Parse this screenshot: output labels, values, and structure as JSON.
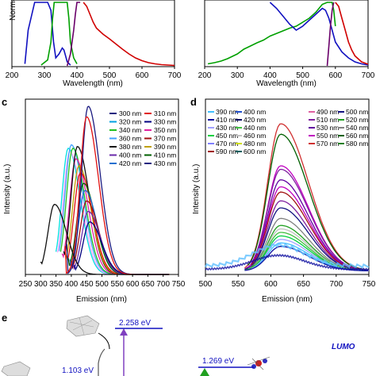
{
  "panels": {
    "a": {
      "xlabel": "Wavelength (nm)",
      "ylabel_partial": "Norma",
      "xticks": [
        "200",
        "300",
        "400",
        "500",
        "600",
        "700"
      ],
      "xlim": [
        200,
        700
      ],
      "series": [
        {
          "color": "#1010c0",
          "x": [
            240,
            250,
            270,
            290,
            300,
            310,
            320,
            328,
            335,
            345,
            355,
            360,
            365,
            370,
            380
          ],
          "y": [
            0.05,
            0.9,
            1.6,
            1.6,
            1.6,
            1.6,
            1.4,
            0.6,
            0.2,
            0.3,
            0.45,
            0.4,
            0.25,
            0.1,
            0.02
          ]
        },
        {
          "color": "#00a000",
          "x": [
            290,
            310,
            320,
            325,
            330,
            335,
            340,
            350,
            360,
            365,
            370,
            375,
            380,
            390,
            400
          ],
          "y": [
            0.02,
            0.15,
            0.6,
            1.2,
            1.6,
            1.6,
            1.6,
            1.6,
            1.6,
            1.6,
            1.6,
            1.2,
            0.6,
            0.2,
            0.05
          ]
        },
        {
          "color": "#6a006a",
          "x": [
            370,
            380,
            390,
            395,
            400,
            405,
            410
          ],
          "y": [
            0.0,
            0.3,
            0.9,
            1.3,
            1.6,
            1.6,
            1.6
          ]
        },
        {
          "color": "#d00000",
          "x": [
            420,
            430,
            440,
            450,
            460,
            480,
            500,
            520,
            540,
            560,
            580,
            600,
            620,
            640,
            660,
            680,
            700
          ],
          "y": [
            1.6,
            1.5,
            1.3,
            1.1,
            0.95,
            0.8,
            0.68,
            0.55,
            0.42,
            0.3,
            0.2,
            0.13,
            0.08,
            0.05,
            0.03,
            0.02,
            0.01
          ]
        }
      ]
    },
    "b": {
      "xlabel": "Wavelength (nm)",
      "xticks": [
        "200",
        "300",
        "400",
        "500",
        "600",
        "700"
      ],
      "xlim": [
        200,
        700
      ],
      "series": [
        {
          "color": "#00a000",
          "x": [
            210,
            230,
            250,
            270,
            300,
            320,
            340,
            360,
            380,
            400,
            430,
            460,
            480,
            500,
            520,
            540,
            560,
            575,
            580,
            585,
            590,
            595,
            600
          ],
          "y": [
            0.05,
            0.08,
            0.12,
            0.18,
            0.3,
            0.42,
            0.5,
            0.58,
            0.65,
            0.75,
            0.85,
            0.95,
            1.0,
            1.1,
            1.2,
            1.35,
            1.55,
            1.6,
            1.6,
            1.6,
            1.6,
            1.4,
            1.0
          ]
        },
        {
          "color": "#1010c0",
          "x": [
            400,
            420,
            440,
            460,
            480,
            500,
            520,
            540,
            560,
            570,
            580,
            590,
            600,
            620,
            640,
            660,
            680,
            700
          ],
          "y": [
            1.6,
            1.45,
            1.25,
            1.05,
            0.9,
            1.0,
            1.15,
            1.3,
            1.45,
            1.4,
            1.2,
            0.9,
            0.6,
            0.35,
            0.2,
            0.1,
            0.05,
            0.02
          ]
        },
        {
          "color": "#6a006a",
          "x": [
            575,
            580,
            585,
            590,
            595
          ],
          "y": [
            0.0,
            0.5,
            1.0,
            1.4,
            1.6
          ]
        },
        {
          "color": "#d00000",
          "x": [
            600,
            610,
            620,
            630,
            640,
            650,
            660,
            680,
            700
          ],
          "y": [
            1.6,
            1.5,
            1.2,
            0.9,
            0.6,
            0.4,
            0.25,
            0.1,
            0.04
          ]
        }
      ]
    },
    "c": {
      "label": "c",
      "xlabel": "Emission (nm)",
      "ylabel": "Intensity (a.u.)",
      "xticks": [
        "250",
        "300",
        "350",
        "400",
        "450",
        "500",
        "550",
        "600",
        "650",
        "700",
        "750"
      ],
      "xlim": [
        250,
        750
      ],
      "legend": [
        {
          "name": "300 nm",
          "color": "#1a1a80"
        },
        {
          "name": "310 nm",
          "color": "#e01010"
        },
        {
          "name": "320 nm",
          "color": "#00a0e0"
        },
        {
          "name": "330 nm",
          "color": "#000080"
        },
        {
          "name": "340 nm",
          "color": "#20c020"
        },
        {
          "name": "350 nm",
          "color": "#e020a0"
        },
        {
          "name": "360 nm",
          "color": "#40a0ff"
        },
        {
          "name": "370 nm",
          "color": "#a01010"
        },
        {
          "name": "380 nm",
          "color": "#101010"
        },
        {
          "name": "390 nm",
          "color": "#c0a000"
        },
        {
          "name": "400 nm",
          "color": "#6a2aaa"
        },
        {
          "name": "410 nm",
          "color": "#006000"
        },
        {
          "name": "420 nm",
          "color": "#2070d0"
        },
        {
          "name": "430 nm",
          "color": "#202080"
        }
      ],
      "peaks": [
        {
          "color": "#00e0e0",
          "peak": 390,
          "height": 0.72,
          "start": 350
        },
        {
          "color": "#ffa0ff",
          "peak": 395,
          "height": 0.7,
          "start": 355
        },
        {
          "color": "#40a0ff",
          "peak": 400,
          "height": 0.74,
          "start": 360
        },
        {
          "color": "#20c020",
          "peak": 405,
          "height": 0.72,
          "start": 365
        },
        {
          "color": "#e020a0",
          "peak": 415,
          "height": 0.66,
          "start": 370
        },
        {
          "color": "#101010",
          "peak": 420,
          "height": 0.73,
          "start": 375
        },
        {
          "color": "#c0a000",
          "peak": 425,
          "height": 0.62,
          "start": 380
        },
        {
          "color": "#e01010",
          "peak": 430,
          "height": 0.58,
          "start": 385
        },
        {
          "color": "#006000",
          "peak": 440,
          "height": 0.52,
          "start": 390
        },
        {
          "color": "#2070d0",
          "peak": 445,
          "height": 0.48,
          "start": 395
        },
        {
          "color": "#a01010",
          "peak": 450,
          "height": 0.42,
          "start": 400
        },
        {
          "color": "#6a2aaa",
          "peak": 455,
          "height": 0.36,
          "start": 405
        },
        {
          "color": "#000080",
          "peak": 460,
          "height": 0.3,
          "start": 410
        },
        {
          "color": "#1a1a80",
          "peak": 455,
          "height": 0.96,
          "start": 385
        },
        {
          "color": "#e01010",
          "peak": 450,
          "height": 0.9,
          "start": 380
        },
        {
          "color": "#101010",
          "peak": 345,
          "height": 0.4,
          "start": 300
        }
      ]
    },
    "d": {
      "label": "d",
      "xlabel": "Emission (nm)",
      "ylabel": "Intensity (a.u.)",
      "xticks": [
        "500",
        "550",
        "600",
        "650",
        "700",
        "750"
      ],
      "xlim": [
        500,
        750
      ],
      "legend": [
        {
          "name": "390 nm",
          "color": "#40c0ff"
        },
        {
          "name": "400 nm",
          "color": "#2050d0"
        },
        {
          "name": "490 nm",
          "color": "#e060a0"
        },
        {
          "name": "500 nm",
          "color": "#101080"
        },
        {
          "name": "410 nm",
          "color": "#1010a0"
        },
        {
          "name": "420 nm",
          "color": "#000060"
        },
        {
          "name": "510 nm",
          "color": "#8020a0"
        },
        {
          "name": "520 nm",
          "color": "#20a020"
        },
        {
          "name": "430 nm",
          "color": "#a0a0ff"
        },
        {
          "name": "440 nm",
          "color": "#40c040"
        },
        {
          "name": "530 nm",
          "color": "#6000a0"
        },
        {
          "name": "540 nm",
          "color": "#808080"
        },
        {
          "name": "450 nm",
          "color": "#00d040"
        },
        {
          "name": "460 nm",
          "color": "#c0c0c0"
        },
        {
          "name": "550 nm",
          "color": "#c000c0"
        },
        {
          "name": "560 nm",
          "color": "#006000"
        },
        {
          "name": "470 nm",
          "color": "#8080ff"
        },
        {
          "name": "480 nm",
          "color": "#d0e000"
        },
        {
          "name": "570 nm",
          "color": "#d03030"
        },
        {
          "name": "580 nm",
          "color": "#208020"
        },
        {
          "name": "590 nm",
          "color": "#a01010"
        },
        {
          "name": "600 nm",
          "color": "#006060"
        }
      ],
      "curves": [
        {
          "color": "#d03030",
          "height": 0.84
        },
        {
          "color": "#006000",
          "height": 0.78
        },
        {
          "color": "#c000c0",
          "height": 0.6
        },
        {
          "color": "#8020a0",
          "height": 0.58
        },
        {
          "color": "#6000a0",
          "height": 0.52
        },
        {
          "color": "#c000c0",
          "height": 0.48
        },
        {
          "color": "#a01010",
          "height": 0.45
        },
        {
          "color": "#8020a0",
          "height": 0.4
        },
        {
          "color": "#101080",
          "height": 0.36
        },
        {
          "color": "#808080",
          "height": 0.3
        },
        {
          "color": "#20a020",
          "height": 0.26
        },
        {
          "color": "#c0c0c0",
          "height": 0.24
        },
        {
          "color": "#40c040",
          "height": 0.22
        },
        {
          "color": "#00d040",
          "height": 0.2
        },
        {
          "color": "#a0a0ff",
          "height": 0.18
        },
        {
          "color": "#40c0ff",
          "height": 0.16
        },
        {
          "color": "#1010a0",
          "height": 0.14
        }
      ]
    },
    "e": {
      "label": "e",
      "levels": [
        {
          "text": "2.258 eV",
          "color": "#1010c0"
        },
        {
          "text": "1.269 eV",
          "color": "#1010c0"
        },
        {
          "text": "1.103 eV",
          "color": "#1010c0"
        }
      ],
      "lumo": "LUMO"
    }
  }
}
